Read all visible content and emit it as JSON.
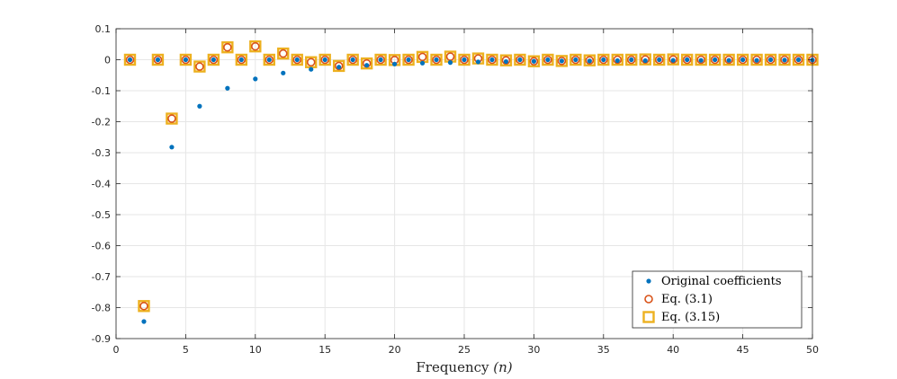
{
  "chart_data": {
    "type": "scatter",
    "xlabel": "Frequency ",
    "xlabel_var": "(n)",
    "ylabel": "",
    "title": "",
    "xlim": [
      0,
      50
    ],
    "ylim": [
      -0.9,
      0.1
    ],
    "xticks": [
      0,
      5,
      10,
      15,
      20,
      25,
      30,
      35,
      40,
      45,
      50
    ],
    "xtick_labels": [
      "0",
      "5",
      "10",
      "15",
      "20",
      "25",
      "30",
      "35",
      "40",
      "45",
      "50"
    ],
    "yticks": [
      0.1,
      0,
      -0.1,
      -0.2,
      -0.3,
      -0.4,
      -0.5,
      -0.6,
      -0.7,
      -0.8,
      -0.9
    ],
    "ytick_labels": [
      "0.1",
      "0",
      "-0.1",
      "-0.2",
      "-0.3",
      "-0.4",
      "-0.5",
      "-0.6",
      "-0.7",
      "-0.8",
      "-0.9"
    ],
    "grid": true,
    "legend_position": "bottom-right",
    "series": [
      {
        "name": "Original coefficients",
        "marker": "dot",
        "color": "#0072BD",
        "x": [
          1,
          2,
          3,
          4,
          5,
          6,
          7,
          8,
          9,
          10,
          11,
          12,
          13,
          14,
          15,
          16,
          17,
          18,
          19,
          20,
          21,
          22,
          23,
          24,
          25,
          26,
          27,
          28,
          29,
          30,
          31,
          32,
          33,
          34,
          35,
          36,
          37,
          38,
          39,
          40,
          41,
          42,
          43,
          44,
          45,
          46,
          47,
          48,
          49,
          50
        ],
        "y": [
          0,
          -0.845,
          0,
          -0.282,
          0,
          -0.15,
          0,
          -0.092,
          0,
          -0.062,
          0,
          -0.043,
          0,
          -0.031,
          0,
          -0.024,
          0,
          -0.018,
          0,
          -0.014,
          0,
          -0.011,
          0,
          -0.009,
          0,
          -0.007,
          0,
          -0.006,
          0,
          -0.005,
          0,
          -0.004,
          0,
          -0.004,
          0,
          -0.003,
          0,
          -0.003,
          0,
          -0.002,
          0,
          -0.002,
          0,
          -0.002,
          0,
          -0.002,
          0,
          -0.001,
          0,
          -0.001
        ]
      },
      {
        "name": "Eq. (3.1)",
        "marker": "circle",
        "color": "#D95319",
        "x": [
          1,
          2,
          3,
          4,
          5,
          6,
          7,
          8,
          9,
          10,
          11,
          12,
          13,
          14,
          15,
          16,
          17,
          18,
          19,
          20,
          21,
          22,
          23,
          24,
          25,
          26,
          27,
          28,
          29,
          30,
          31,
          32,
          33,
          34,
          35,
          36,
          37,
          38,
          39,
          40,
          41,
          42,
          43,
          44,
          45,
          46,
          47,
          48,
          49,
          50
        ],
        "y": [
          0,
          -0.795,
          0,
          -0.19,
          0,
          -0.022,
          0,
          0.04,
          0,
          0.043,
          0,
          0.02,
          0,
          -0.008,
          0,
          -0.02,
          0,
          -0.012,
          0,
          -0.001,
          0,
          0.009,
          0,
          0.01,
          0,
          0.004,
          0,
          -0.002,
          0,
          -0.005,
          0,
          -0.004,
          0,
          -0.002,
          0,
          0,
          0,
          0.001,
          0,
          0.001,
          0,
          0,
          0,
          0,
          0,
          0,
          0,
          0,
          0,
          0
        ]
      },
      {
        "name": "Eq. (3.15)",
        "marker": "square",
        "color": "#EDB120",
        "x": [
          1,
          2,
          3,
          4,
          5,
          6,
          7,
          8,
          9,
          10,
          11,
          12,
          13,
          14,
          15,
          16,
          17,
          18,
          19,
          20,
          21,
          22,
          23,
          24,
          25,
          26,
          27,
          28,
          29,
          30,
          31,
          32,
          33,
          34,
          35,
          36,
          37,
          38,
          39,
          40,
          41,
          42,
          43,
          44,
          45,
          46,
          47,
          48,
          49,
          50
        ],
        "y": [
          0,
          -0.795,
          0,
          -0.19,
          0,
          -0.022,
          0,
          0.04,
          0,
          0.043,
          0,
          0.02,
          0,
          -0.008,
          0,
          -0.02,
          0,
          -0.012,
          0,
          -0.001,
          0,
          0.009,
          0,
          0.01,
          0,
          0.004,
          0,
          -0.002,
          0,
          -0.005,
          0,
          -0.004,
          0,
          -0.002,
          0,
          0,
          0,
          0.001,
          0,
          0.001,
          0,
          0,
          0,
          0,
          0,
          0,
          0,
          0,
          0,
          0
        ]
      }
    ]
  }
}
